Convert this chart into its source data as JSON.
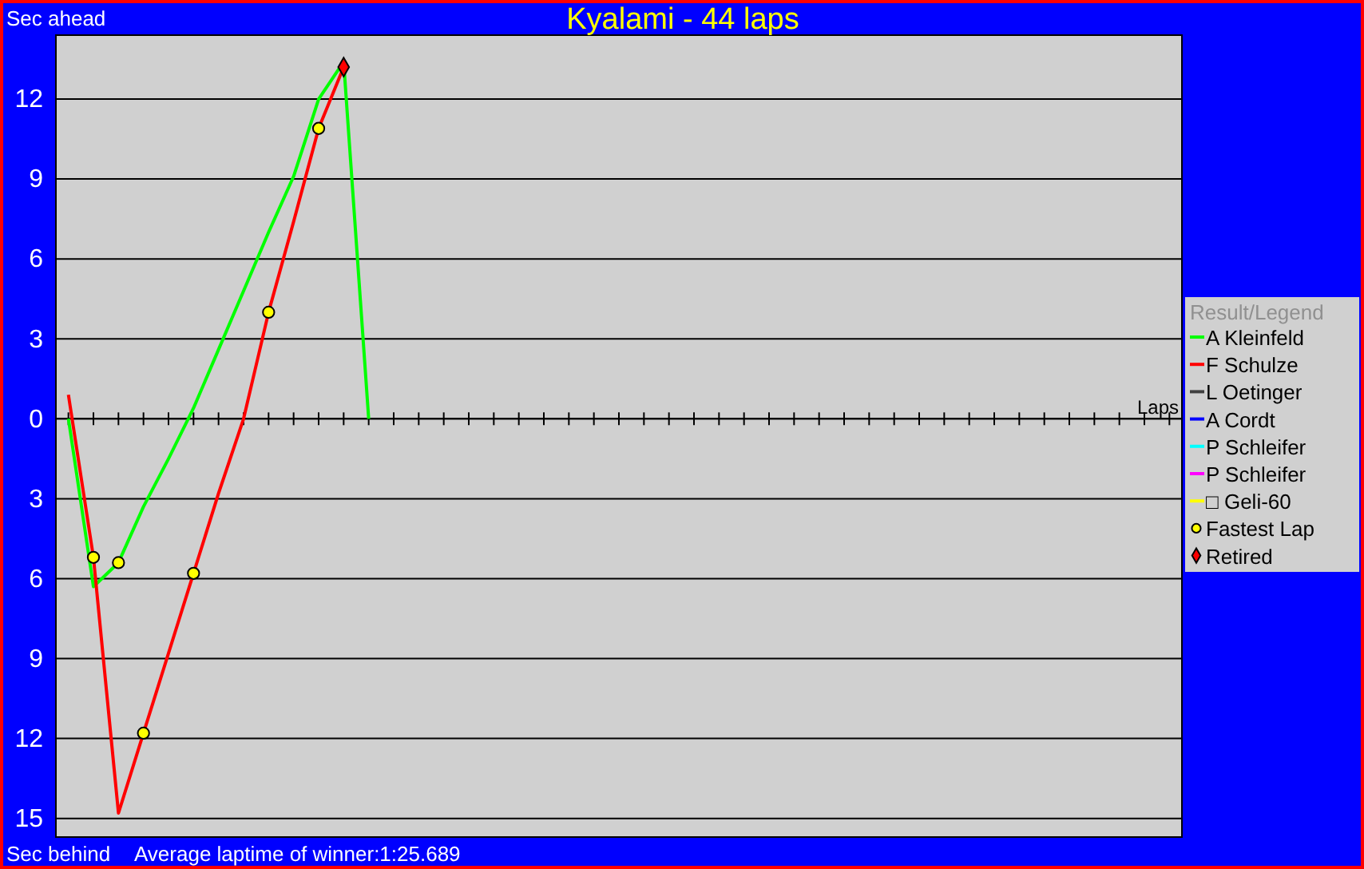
{
  "chart_data": {
    "type": "line",
    "title": "Kyalami - 44 laps",
    "ylabel": "Sec ahead",
    "xlabel": "Laps",
    "legend_title": "Result/Legend",
    "annotations": [
      "Sec behind",
      "Average laptime of winner:1:25.689"
    ],
    "categories": [
      null,
      null,
      null,
      null,
      null,
      null,
      null,
      null,
      null,
      null,
      null,
      null,
      null,
      null,
      null,
      null,
      null,
      null,
      null,
      null,
      null,
      null,
      null,
      null,
      null,
      null,
      null,
      null,
      null,
      null,
      null,
      null,
      null,
      null,
      null,
      null,
      null,
      null,
      null,
      null,
      null,
      null,
      null,
      null,
      null
    ],
    "series": [
      {
        "name": "A Kleinfeld",
        "color": "#00ff00",
        "values": [
          0,
          -6.3,
          -5.4,
          -3.3,
          -1.5,
          0.4,
          2.6,
          4.8,
          7.0,
          9.1,
          12.0,
          13.4,
          0,
          null,
          null,
          null,
          null,
          null,
          null,
          null,
          null,
          null,
          null,
          null,
          null,
          null,
          null,
          null,
          null,
          null,
          null,
          null,
          null,
          null,
          null,
          null,
          null,
          null,
          null,
          null,
          null,
          null,
          null,
          null,
          null
        ]
      },
      {
        "name": "F Schulze",
        "color": "#ff0000",
        "values": [
          0.9,
          -5.2,
          -14.8,
          -11.8,
          -8.8,
          -5.8,
          -2.8,
          0,
          4.0,
          7.4,
          10.9,
          13.2,
          null,
          null,
          null,
          null,
          null,
          null,
          null,
          null,
          null,
          null,
          null,
          null,
          null,
          null,
          null,
          null,
          null,
          null,
          null,
          null,
          null,
          null,
          null,
          null,
          null,
          null,
          null,
          null,
          null,
          null,
          null,
          null,
          null
        ]
      },
      {
        "name": "L Oetinger",
        "color": "#404040",
        "values": [
          null,
          null,
          null,
          null,
          null,
          null,
          null,
          null,
          null,
          null,
          null,
          null,
          null,
          null,
          null,
          null,
          null,
          null,
          null,
          null,
          null,
          null,
          null,
          null,
          null,
          null,
          null,
          null,
          null,
          null,
          null,
          null,
          null,
          null,
          null,
          null,
          null,
          null,
          null,
          null,
          null,
          null,
          null,
          null,
          null
        ]
      },
      {
        "name": "A Cordt",
        "color": "#0000ff",
        "values": [
          null,
          null,
          null,
          null,
          null,
          null,
          null,
          null,
          null,
          null,
          null,
          null,
          null,
          null,
          null,
          null,
          null,
          null,
          null,
          null,
          null,
          null,
          null,
          null,
          null,
          null,
          null,
          null,
          null,
          null,
          null,
          null,
          null,
          null,
          null,
          null,
          null,
          null,
          null,
          null,
          null,
          null,
          null,
          null,
          null
        ]
      },
      {
        "name": "P Schleifer",
        "color": "#00ffff",
        "values": [
          null,
          null,
          null,
          null,
          null,
          null,
          null,
          null,
          null,
          null,
          null,
          null,
          null,
          null,
          null,
          null,
          null,
          null,
          null,
          null,
          null,
          null,
          null,
          null,
          null,
          null,
          null,
          null,
          null,
          null,
          null,
          null,
          null,
          null,
          null,
          null,
          null,
          null,
          null,
          null,
          null,
          null,
          null,
          null,
          null
        ]
      },
      {
        "name": "P Schleifer",
        "color": "#ff00ff",
        "values": [
          null,
          null,
          null,
          null,
          null,
          null,
          null,
          null,
          null,
          null,
          null,
          null,
          null,
          null,
          null,
          null,
          null,
          null,
          null,
          null,
          null,
          null,
          null,
          null,
          null,
          null,
          null,
          null,
          null,
          null,
          null,
          null,
          null,
          null,
          null,
          null,
          null,
          null,
          null,
          null,
          null,
          null,
          null,
          null,
          null
        ]
      },
      {
        "name": "□ Geli-60",
        "color": "#ffff00",
        "values": [
          null,
          null,
          null,
          null,
          null,
          null,
          null,
          null,
          null,
          null,
          null,
          null,
          null,
          null,
          null,
          null,
          null,
          null,
          null,
          null,
          null,
          null,
          null,
          null,
          null,
          null,
          null,
          null,
          null,
          null,
          null,
          null,
          null,
          null,
          null,
          null,
          null,
          null,
          null,
          null,
          null,
          null,
          null,
          null,
          null
        ]
      },
      {
        "name": "Fastest Lap",
        "type": "scatter",
        "marker": "circle",
        "color": "#ffff00",
        "values": [
          null,
          -5.2,
          -5.4,
          -11.8,
          null,
          -5.8,
          null,
          null,
          4.0,
          null,
          10.9,
          null,
          null,
          null,
          null,
          null,
          null,
          null,
          null,
          null,
          null,
          null,
          null,
          null,
          null,
          null,
          null,
          null,
          null,
          null,
          null,
          null,
          null,
          null,
          null,
          null,
          null,
          null,
          null,
          null,
          null,
          null,
          null,
          null,
          null
        ]
      },
      {
        "name": "Retired",
        "type": "scatter",
        "marker": "diamond",
        "color": "#ff0000",
        "values": [
          null,
          null,
          null,
          null,
          null,
          null,
          null,
          null,
          null,
          null,
          null,
          13.2,
          null,
          null,
          null,
          null,
          null,
          null,
          null,
          null,
          null,
          null,
          null,
          null,
          null,
          null,
          null,
          null,
          null,
          null,
          null,
          null,
          null,
          null,
          null,
          null,
          null,
          null,
          null,
          null,
          null,
          null,
          null,
          null,
          null
        ]
      }
    ],
    "ylim": [
      -15.7,
      14.4
    ],
    "yticks": [
      12,
      9,
      6,
      3,
      0,
      {
        "value": -3,
        "label": "3"
      },
      {
        "value": -6,
        "label": "6"
      },
      {
        "value": -9,
        "label": "9"
      },
      {
        "value": -12,
        "label": "12"
      },
      {
        "value": -15,
        "label": "15"
      }
    ],
    "grid": "y",
    "legend": "right"
  }
}
